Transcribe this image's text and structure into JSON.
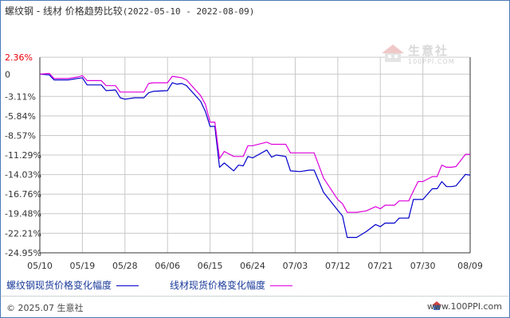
{
  "header": {
    "title": "螺纹钢 - 线材 价格趋势比较",
    "date_range": "(2022-05-10 - 2022-08-09)"
  },
  "watermark": {
    "name": "生意社",
    "url": "100PPI.COM"
  },
  "footer": {
    "copyright": "© 2025.07 生意社",
    "site": "www.100PPI.com"
  },
  "colors": {
    "axis": "#333333",
    "grid": "#c8c8c8",
    "top_label": "#e8000b",
    "series_rebar": "#0000cc",
    "series_wire": "#dd00dd",
    "legend_text": "#1a3a9a"
  },
  "chart_data": {
    "type": "line",
    "title": "",
    "xlabel": "",
    "ylabel": "",
    "ylim": [
      -24.95,
      2.36
    ],
    "y_ticks": [
      "2.36%",
      "0",
      "-3.11%",
      "-5.84%",
      "-8.57%",
      "-11.29%",
      "-14.03%",
      "-16.76%",
      "-19.48%",
      "-22.21%",
      "-24.95%"
    ],
    "y_tick_values": [
      2.36,
      0,
      -3.11,
      -5.84,
      -8.57,
      -11.29,
      -14.03,
      -16.76,
      -19.48,
      -22.21,
      -24.95
    ],
    "x_range": [
      "05/10",
      "08/09"
    ],
    "x_ticks": [
      "05/10",
      "05/19",
      "05/28",
      "06/06",
      "06/15",
      "06/24",
      "07/03",
      "07/12",
      "07/21",
      "07/30",
      "08/09"
    ],
    "grid": true,
    "legend_position": "bottom",
    "series": [
      {
        "name": "螺纹钢现货价格变化幅度",
        "color": "#0000cc",
        "points": [
          [
            "05/10",
            0
          ],
          [
            "05/12",
            -0.1
          ],
          [
            "05/13",
            -0.8
          ],
          [
            "05/16",
            -0.8
          ],
          [
            "05/18",
            -0.6
          ],
          [
            "05/19",
            -0.5
          ],
          [
            "05/20",
            -1.5
          ],
          [
            "05/23",
            -1.5
          ],
          [
            "05/24",
            -2.3
          ],
          [
            "05/26",
            -2.2
          ],
          [
            "05/27",
            -3.3
          ],
          [
            "05/28",
            -3.5
          ],
          [
            "05/30",
            -3.3
          ],
          [
            "06/01",
            -3.3
          ],
          [
            "06/02",
            -2.6
          ],
          [
            "06/03",
            -2.4
          ],
          [
            "06/06",
            -2.3
          ],
          [
            "06/07",
            -1.2
          ],
          [
            "06/08",
            -1.4
          ],
          [
            "06/09",
            -1.3
          ],
          [
            "06/10",
            -1.6
          ],
          [
            "06/13",
            -3.8
          ],
          [
            "06/14",
            -5.2
          ],
          [
            "06/15",
            -7.3
          ],
          [
            "06/16",
            -7.3
          ],
          [
            "06/17",
            -13.0
          ],
          [
            "06/18",
            -12.4
          ],
          [
            "06/20",
            -13.5
          ],
          [
            "06/21",
            -12.7
          ],
          [
            "06/22",
            -12.8
          ],
          [
            "06/23",
            -11.5
          ],
          [
            "06/24",
            -11.7
          ],
          [
            "06/27",
            -10.6
          ],
          [
            "06/28",
            -11.6
          ],
          [
            "06/29",
            -11.3
          ],
          [
            "07/01",
            -11.5
          ],
          [
            "07/02",
            -13.5
          ],
          [
            "07/04",
            -13.6
          ],
          [
            "07/06",
            -13.4
          ],
          [
            "07/07",
            -13.4
          ],
          [
            "07/09",
            -16.5
          ],
          [
            "07/12",
            -19.0
          ],
          [
            "07/13",
            -19.8
          ],
          [
            "07/14",
            -22.8
          ],
          [
            "07/16",
            -22.8
          ],
          [
            "07/18",
            -22.0
          ],
          [
            "07/20",
            -21.0
          ],
          [
            "07/21",
            -21.3
          ],
          [
            "07/22",
            -20.8
          ],
          [
            "07/24",
            -20.8
          ],
          [
            "07/25",
            -20.1
          ],
          [
            "07/27",
            -20.1
          ],
          [
            "07/28",
            -17.5
          ],
          [
            "07/29",
            -17.5
          ],
          [
            "07/30",
            -17.5
          ],
          [
            "08/01",
            -16.0
          ],
          [
            "08/02",
            -16.0
          ],
          [
            "08/03",
            -15.0
          ],
          [
            "08/04",
            -15.7
          ],
          [
            "08/05",
            -15.7
          ],
          [
            "08/06",
            -15.6
          ],
          [
            "08/08",
            -14.0
          ],
          [
            "08/09",
            -14.1
          ]
        ]
      },
      {
        "name": "线材现货价格变化幅度",
        "color": "#dd00dd",
        "points": [
          [
            "05/10",
            0
          ],
          [
            "05/12",
            0.1
          ],
          [
            "05/13",
            -0.6
          ],
          [
            "05/16",
            -0.6
          ],
          [
            "05/18",
            -0.4
          ],
          [
            "05/19",
            -0.2
          ],
          [
            "05/20",
            -0.9
          ],
          [
            "05/23",
            -0.9
          ],
          [
            "05/24",
            -1.6
          ],
          [
            "05/26",
            -1.6
          ],
          [
            "05/27",
            -2.5
          ],
          [
            "05/28",
            -2.5
          ],
          [
            "05/30",
            -2.5
          ],
          [
            "06/01",
            -2.5
          ],
          [
            "06/02",
            -1.3
          ],
          [
            "06/03",
            -1.2
          ],
          [
            "06/06",
            -1.2
          ],
          [
            "06/07",
            -0.3
          ],
          [
            "06/08",
            -0.4
          ],
          [
            "06/09",
            -0.5
          ],
          [
            "06/10",
            -0.8
          ],
          [
            "06/13",
            -3.0
          ],
          [
            "06/14",
            -4.2
          ],
          [
            "06/15",
            -6.7
          ],
          [
            "06/16",
            -6.7
          ],
          [
            "06/17",
            -11.8
          ],
          [
            "06/18",
            -10.8
          ],
          [
            "06/20",
            -11.5
          ],
          [
            "06/21",
            -11.5
          ],
          [
            "06/22",
            -11.5
          ],
          [
            "06/23",
            -10.0
          ],
          [
            "06/24",
            -10.0
          ],
          [
            "06/27",
            -9.5
          ],
          [
            "06/28",
            -9.8
          ],
          [
            "06/29",
            -9.8
          ],
          [
            "07/01",
            -9.8
          ],
          [
            "07/02",
            -11.0
          ],
          [
            "07/04",
            -11.0
          ],
          [
            "07/06",
            -11.0
          ],
          [
            "07/07",
            -11.0
          ],
          [
            "07/09",
            -14.5
          ],
          [
            "07/12",
            -17.5
          ],
          [
            "07/13",
            -18.1
          ],
          [
            "07/14",
            -19.3
          ],
          [
            "07/16",
            -19.3
          ],
          [
            "07/18",
            -19.1
          ],
          [
            "07/20",
            -18.5
          ],
          [
            "07/21",
            -18.8
          ],
          [
            "07/22",
            -18.3
          ],
          [
            "07/24",
            -18.3
          ],
          [
            "07/25",
            -17.7
          ],
          [
            "07/27",
            -17.7
          ],
          [
            "07/28",
            -16.3
          ],
          [
            "07/29",
            -15.0
          ],
          [
            "07/30",
            -15.0
          ],
          [
            "08/01",
            -14.3
          ],
          [
            "08/02",
            -14.3
          ],
          [
            "08/03",
            -12.7
          ],
          [
            "08/04",
            -13.0
          ],
          [
            "08/05",
            -13.0
          ],
          [
            "08/06",
            -12.9
          ],
          [
            "08/08",
            -11.2
          ],
          [
            "08/09",
            -11.2
          ]
        ]
      }
    ]
  }
}
